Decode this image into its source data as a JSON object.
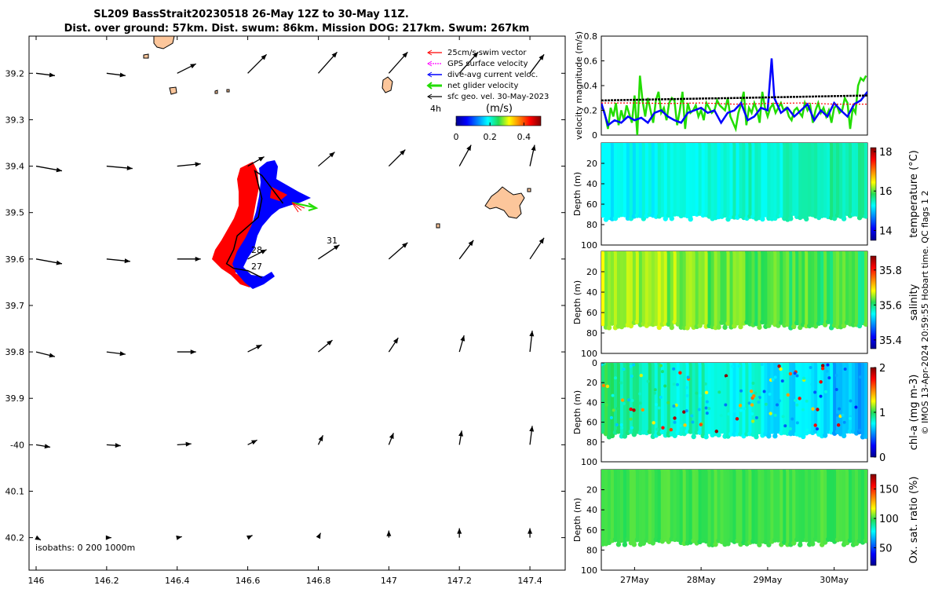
{
  "figure": {
    "title_line1": "SL209 BassStrait20230518 26-May 12Z to 30-May 11Z.",
    "title_line2": "Dist. over ground: 57km. Dist. swum: 86km. Mission DOG: 217km. Swum: 267km",
    "credit": "© IMOS 13-Apr-2024 20:59:55 Hobart time. QC flags 1  2"
  },
  "colors": {
    "red": "#ff0000",
    "blue": "#0000ff",
    "green": "#22dd00",
    "land": "#fcc69b",
    "black": "#000000",
    "magenta": "#ff00ff"
  },
  "chart_data": [
    {
      "type": "scatter",
      "name": "map",
      "title": "SL209 BassStrait20230518 26-May 12Z to 30-May 11Z.",
      "xlim": [
        145.98,
        147.5
      ],
      "ylim": [
        -40.27,
        -39.12
      ],
      "x_ticks": [
        146,
        146.2,
        146.4,
        146.6,
        146.8,
        147,
        147.2,
        147.4
      ],
      "x_tick_labels": [
        "146",
        "146.2",
        "146.4",
        "146.6",
        "146.8",
        "147",
        "147.2",
        "147.4"
      ],
      "y_ticks": [
        -39.2,
        -39.3,
        -39.4,
        -39.5,
        -39.6,
        -39.7,
        -39.8,
        -39.9,
        -40,
        -40.1,
        -40.2
      ],
      "y_tick_labels": [
        "39.2",
        "39.3",
        "39.4",
        "39.5",
        "39.6",
        "39.7",
        "39.8",
        "39.9",
        "-40",
        "40.1",
        "40.2"
      ],
      "legend": [
        {
          "label": "25cm/s swim vector",
          "color": "#ff0000"
        },
        {
          "label": "GPS surface velocity",
          "color": "#ff00ff"
        },
        {
          "label": "dive-avg current veloc.",
          "color": "#0000ff"
        },
        {
          "label": "net glider velocity",
          "color": "#22dd00"
        },
        {
          "label": "sfc geo. vel. 30-May-2023",
          "color": "#000000"
        }
      ],
      "legend_position": "top-right",
      "speed_colorbar": {
        "label": "(m/s)",
        "interval_label": "4h",
        "ticks": [
          0,
          0.2,
          0.4
        ],
        "tick_labels": [
          "0",
          "0.2",
          "0.4"
        ],
        "range": [
          0,
          0.5
        ]
      },
      "isobaths_label": "isobaths: 0   200  1000m",
      "annotations": [
        {
          "text": "31",
          "lon": 146.83,
          "lat": -39.577
        },
        {
          "text": "28",
          "lon": 146.64,
          "lat": -39.62
        },
        {
          "text": "27",
          "lon": 146.65,
          "lat": -39.653
        }
      ],
      "glider_track": [
        [
          146.7,
          -39.48
        ],
        [
          146.68,
          -39.46
        ],
        [
          146.66,
          -39.44
        ],
        [
          146.64,
          -39.42
        ],
        [
          146.62,
          -39.41
        ],
        [
          146.63,
          -39.44
        ],
        [
          146.64,
          -39.47
        ],
        [
          146.63,
          -39.51
        ],
        [
          146.6,
          -39.53
        ],
        [
          146.57,
          -39.55
        ],
        [
          146.56,
          -39.58
        ],
        [
          146.54,
          -39.61
        ],
        [
          146.56,
          -39.62
        ],
        [
          146.6,
          -39.625
        ],
        [
          146.64,
          -39.64
        ]
      ],
      "geo_vectors": {
        "lons": [
          146.0,
          146.2,
          146.4,
          146.6,
          146.8,
          147.0,
          147.2,
          147.4
        ],
        "lats": [
          -39.2,
          -39.4,
          -39.6,
          -39.8,
          -40.0,
          -40.2
        ],
        "u": [
          [
            0.4,
            0.4,
            0.4,
            0.4,
            0.4,
            0.4,
            0.4,
            0.3
          ],
          [
            0.55,
            0.55,
            0.5,
            0.35,
            0.35,
            0.35,
            0.25,
            0.1
          ],
          [
            0.55,
            0.5,
            0.5,
            0.4,
            0.45,
            0.4,
            0.3,
            0.3
          ],
          [
            0.4,
            0.4,
            0.4,
            0.3,
            0.3,
            0.2,
            0.1,
            0.05
          ],
          [
            0.3,
            0.3,
            0.3,
            0.2,
            0.1,
            0.1,
            0.05,
            0.05
          ],
          [
            0.1,
            0.1,
            0.1,
            0.1,
            0.05,
            0.0,
            0.0,
            0.0
          ]
        ],
        "v": [
          [
            -0.05,
            -0.05,
            0.2,
            0.4,
            0.45,
            0.45,
            0.45,
            0.4
          ],
          [
            -0.1,
            -0.05,
            0.05,
            0.2,
            0.3,
            0.35,
            0.45,
            0.45
          ],
          [
            -0.1,
            -0.05,
            0.0,
            0.2,
            0.3,
            0.35,
            0.4,
            0.45
          ],
          [
            -0.1,
            -0.05,
            0.0,
            0.15,
            0.25,
            0.3,
            0.35,
            0.45
          ],
          [
            -0.05,
            -0.02,
            0.02,
            0.1,
            0.2,
            0.25,
            0.3,
            0.4
          ],
          [
            -0.05,
            0.0,
            0.02,
            0.05,
            0.1,
            0.15,
            0.2,
            0.2
          ]
        ]
      }
    },
    {
      "type": "line",
      "name": "velocity",
      "ylabel": "velocity magnitude (m/s)",
      "ylim": [
        0,
        0.8
      ],
      "y_ticks": [
        0,
        0.2,
        0.4,
        0.6,
        0.8
      ],
      "y_tick_labels": [
        "0",
        "0.2",
        "0.4",
        "0.6",
        "0.8"
      ],
      "xlim": [
        26.5,
        30.5
      ],
      "series": [
        {
          "name": "net glider velocity",
          "color": "#22dd00",
          "x": [
            26.5,
            26.55,
            26.6,
            26.64,
            26.68,
            26.72,
            26.76,
            26.8,
            26.84,
            26.88,
            26.92,
            26.96,
            27.0,
            27.04,
            27.08,
            27.12,
            27.16,
            27.2,
            27.24,
            27.28,
            27.32,
            27.36,
            27.4,
            27.44,
            27.48,
            27.52,
            27.56,
            27.6,
            27.64,
            27.68,
            27.72,
            27.76,
            27.8,
            27.84,
            27.88,
            27.92,
            27.96,
            28.0,
            28.04,
            28.08,
            28.12,
            28.16,
            28.2,
            28.24,
            28.28,
            28.32,
            28.36,
            28.4,
            28.44,
            28.48,
            28.52,
            28.56,
            28.6,
            28.64,
            28.68,
            28.72,
            28.76,
            28.8,
            28.84,
            28.88,
            28.92,
            28.96,
            29.0,
            29.04,
            29.08,
            29.12,
            29.16,
            29.2,
            29.24,
            29.28,
            29.32,
            29.36,
            29.4,
            29.44,
            29.48,
            29.52,
            29.56,
            29.6,
            29.64,
            29.68,
            29.72,
            29.76,
            29.8,
            29.84,
            29.88,
            29.92,
            29.96,
            30.0,
            30.04,
            30.08,
            30.12,
            30.16,
            30.2,
            30.24,
            30.28,
            30.32,
            30.36,
            30.4,
            30.44,
            30.48
          ],
          "y": [
            0.25,
            0.18,
            0.05,
            0.22,
            0.15,
            0.26,
            0.08,
            0.2,
            0.12,
            0.24,
            0.17,
            0.1,
            0.32,
            0.0,
            0.48,
            0.28,
            0.15,
            0.3,
            0.2,
            0.1,
            0.28,
            0.35,
            0.18,
            0.22,
            0.12,
            0.26,
            0.3,
            0.28,
            0.08,
            0.2,
            0.35,
            0.05,
            0.26,
            0.18,
            0.2,
            0.24,
            0.15,
            0.2,
            0.12,
            0.26,
            0.22,
            0.18,
            0.2,
            0.28,
            0.24,
            0.22,
            0.2,
            0.3,
            0.15,
            0.1,
            0.05,
            0.18,
            0.25,
            0.35,
            0.08,
            0.22,
            0.18,
            0.26,
            0.2,
            0.1,
            0.35,
            0.22,
            0.15,
            0.22,
            0.25,
            0.18,
            0.22,
            0.26,
            0.2,
            0.22,
            0.15,
            0.12,
            0.2,
            0.22,
            0.18,
            0.15,
            0.26,
            0.2,
            0.24,
            0.1,
            0.2,
            0.26,
            0.18,
            0.22,
            0.15,
            0.2,
            0.1,
            0.22,
            0.24,
            0.18,
            0.2,
            0.3,
            0.26,
            0.05,
            0.22,
            0.18,
            0.4,
            0.46,
            0.44,
            0.48
          ]
        },
        {
          "name": "dive-avg current veloc.",
          "color": "#0000ff",
          "x": [
            26.5,
            26.6,
            26.7,
            26.8,
            26.9,
            27.0,
            27.1,
            27.2,
            27.3,
            27.4,
            27.5,
            27.6,
            27.7,
            27.8,
            27.9,
            28.0,
            28.1,
            28.2,
            28.3,
            28.4,
            28.5,
            28.6,
            28.7,
            28.8,
            28.9,
            29.0,
            29.06,
            29.1,
            29.2,
            29.3,
            29.4,
            29.5,
            29.6,
            29.7,
            29.8,
            29.9,
            30.0,
            30.1,
            30.2,
            30.3,
            30.4,
            30.5
          ],
          "y": [
            0.26,
            0.08,
            0.12,
            0.1,
            0.15,
            0.12,
            0.14,
            0.1,
            0.18,
            0.2,
            0.15,
            0.12,
            0.1,
            0.18,
            0.2,
            0.22,
            0.18,
            0.2,
            0.1,
            0.18,
            0.2,
            0.26,
            0.12,
            0.15,
            0.22,
            0.2,
            0.62,
            0.3,
            0.18,
            0.22,
            0.15,
            0.2,
            0.25,
            0.12,
            0.2,
            0.15,
            0.26,
            0.2,
            0.15,
            0.25,
            0.28,
            0.35
          ]
        },
        {
          "name": "sfc geo. vel.",
          "color": "#000000",
          "x": [
            26.5,
            27.0,
            27.5,
            28.0,
            28.5,
            29.0,
            29.5,
            30.0,
            30.5
          ],
          "y": [
            0.28,
            0.285,
            0.29,
            0.295,
            0.3,
            0.305,
            0.31,
            0.315,
            0.32
          ]
        },
        {
          "name": "swim",
          "color": "#ff0000",
          "x": [
            26.5,
            27.0,
            27.5,
            28.0,
            28.5,
            29.0,
            29.5,
            30.0,
            30.5
          ],
          "y": [
            0.26,
            0.26,
            0.255,
            0.26,
            0.25,
            0.255,
            0.26,
            0.25,
            0.25
          ]
        }
      ]
    },
    {
      "type": "heatmap",
      "name": "temperature",
      "ylabel": "Depth (m)",
      "ylim": [
        100,
        0
      ],
      "y_ticks": [
        20,
        40,
        60,
        80,
        100
      ],
      "y_tick_labels": [
        "20",
        "40",
        "60",
        "80",
        "100"
      ],
      "colorbar_label": "temperature (°C)",
      "colorbar_ticks": [
        14,
        16,
        18
      ],
      "colorbar_tick_labels": [
        "14",
        "16",
        "18"
      ],
      "crange": [
        13.5,
        18.2
      ],
      "typical_value": 15.5,
      "max_depth_m": 72
    },
    {
      "type": "heatmap",
      "name": "salinity",
      "ylabel": "Depth (m)",
      "ylim": [
        100,
        0
      ],
      "y_ticks": [
        20,
        40,
        60,
        80,
        100
      ],
      "y_tick_labels": [
        "20",
        "40",
        "60",
        "80",
        "100"
      ],
      "colorbar_label": "salinity",
      "colorbar_ticks": [
        35.4,
        35.6,
        35.8
      ],
      "colorbar_tick_labels": [
        "35.4",
        "35.6",
        "35.8"
      ],
      "crange": [
        35.35,
        35.88
      ],
      "typical_value": 35.64,
      "max_depth_m": 72
    },
    {
      "type": "heatmap",
      "name": "chl-a",
      "ylabel": "Depth (m)",
      "ylim": [
        100,
        0
      ],
      "y_ticks": [
        0,
        20,
        40,
        60,
        80,
        100
      ],
      "y_tick_labels": [
        "0",
        "20",
        "40",
        "60",
        "80",
        "100"
      ],
      "colorbar_label": "chl-a (mg m-3)",
      "colorbar_ticks": [
        0,
        1,
        2
      ],
      "colorbar_tick_labels": [
        "0",
        "1",
        "2"
      ],
      "crange": [
        0,
        2
      ],
      "typical_value": 0.85,
      "max_depth_m": 72
    },
    {
      "type": "heatmap",
      "name": "oxygen",
      "ylabel": "Depth (m)",
      "ylim": [
        100,
        0
      ],
      "y_ticks": [
        20,
        40,
        60,
        80,
        100
      ],
      "y_tick_labels": [
        "20",
        "40",
        "60",
        "80",
        "100"
      ],
      "x_ticks": [
        27,
        28,
        29,
        30
      ],
      "x_tick_labels": [
        "27May",
        "28May",
        "29May",
        "30May"
      ],
      "xlim": [
        26.5,
        30.5
      ],
      "colorbar_label": "Ox. sat. ratio (%)",
      "colorbar_ticks": [
        50,
        100,
        150
      ],
      "colorbar_tick_labels": [
        "50",
        "100",
        "150"
      ],
      "crange": [
        20,
        175
      ],
      "typical_value": 100,
      "max_depth_m": 72
    }
  ]
}
